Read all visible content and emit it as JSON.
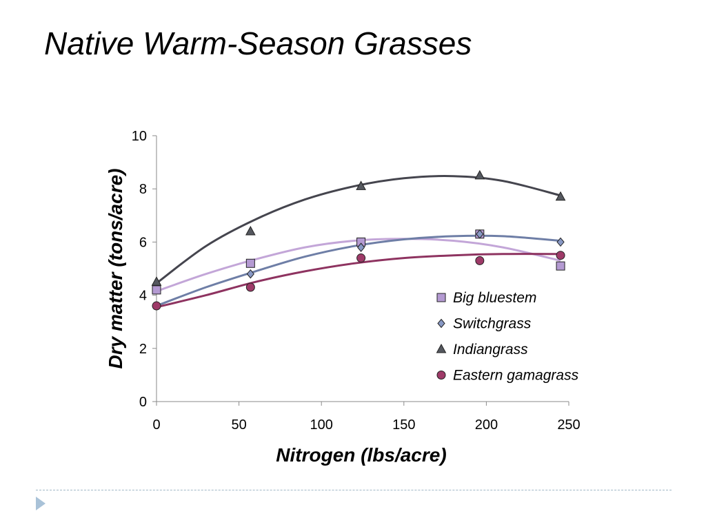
{
  "page": {
    "title": "Native Warm-Season Grasses",
    "footer_icon": "triangle-bullet-icon"
  },
  "chart_data": {
    "type": "scatter",
    "xlabel": "Nitrogen (lbs/acre)",
    "ylabel": "Dry matter (tons/acre)",
    "xlim": [
      0,
      250
    ],
    "ylim": [
      0,
      10
    ],
    "xticks": [
      0,
      50,
      100,
      150,
      200,
      250
    ],
    "yticks": [
      0,
      2,
      4,
      6,
      8,
      10
    ],
    "grid": false,
    "legend_position": "right",
    "x": [
      0,
      57,
      124,
      196,
      245
    ],
    "series": [
      {
        "name": "Big bluestem",
        "marker": "square",
        "color": "#b49ad2",
        "line_color": "#c3a6d8",
        "values": [
          4.2,
          5.2,
          6.0,
          6.3,
          5.1
        ],
        "trend": [
          [
            0,
            4.15
          ],
          [
            30,
            4.8
          ],
          [
            60,
            5.35
          ],
          [
            90,
            5.8
          ],
          [
            120,
            6.05
          ],
          [
            150,
            6.12
          ],
          [
            180,
            6.05
          ],
          [
            210,
            5.8
          ],
          [
            245,
            5.3
          ]
        ]
      },
      {
        "name": "Switchgrass",
        "marker": "diamond",
        "color": "#8898c4",
        "line_color": "#6e7ea6",
        "values": [
          3.6,
          4.8,
          5.8,
          6.3,
          6.0
        ],
        "trend": [
          [
            0,
            3.6
          ],
          [
            30,
            4.3
          ],
          [
            60,
            4.9
          ],
          [
            90,
            5.45
          ],
          [
            120,
            5.85
          ],
          [
            150,
            6.1
          ],
          [
            180,
            6.22
          ],
          [
            210,
            6.22
          ],
          [
            245,
            6.05
          ]
        ]
      },
      {
        "name": "Indiangrass",
        "marker": "triangle",
        "color": "#55585f",
        "line_color": "#45454e",
        "values": [
          4.5,
          6.4,
          8.1,
          8.5,
          7.7
        ],
        "trend": [
          [
            0,
            4.45
          ],
          [
            30,
            5.85
          ],
          [
            60,
            6.85
          ],
          [
            90,
            7.6
          ],
          [
            120,
            8.1
          ],
          [
            150,
            8.4
          ],
          [
            180,
            8.48
          ],
          [
            210,
            8.3
          ],
          [
            245,
            7.75
          ]
        ]
      },
      {
        "name": "Eastern gamagrass",
        "marker": "circle",
        "color": "#9e3a68",
        "line_color": "#8e3360",
        "values": [
          3.6,
          4.3,
          5.4,
          5.3,
          5.5
        ],
        "trend": [
          [
            0,
            3.55
          ],
          [
            30,
            4.0
          ],
          [
            60,
            4.5
          ],
          [
            90,
            4.9
          ],
          [
            120,
            5.2
          ],
          [
            150,
            5.4
          ],
          [
            180,
            5.5
          ],
          [
            210,
            5.55
          ],
          [
            245,
            5.55
          ]
        ]
      }
    ]
  }
}
